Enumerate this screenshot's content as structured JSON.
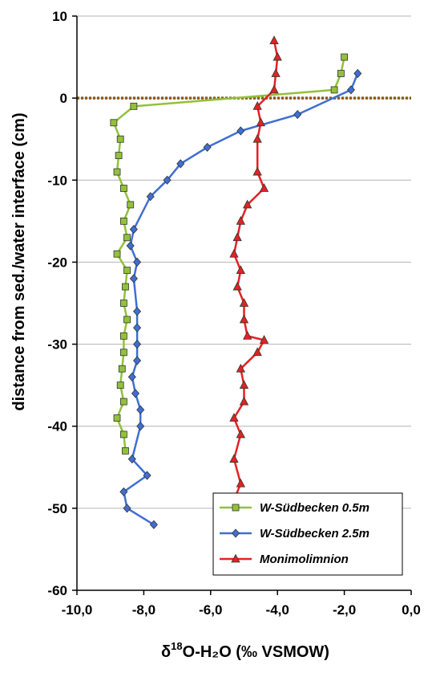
{
  "chart_data": {
    "type": "line",
    "xlabel_prefix": "δ",
    "xlabel_sup": "18",
    "xlabel_rest": "O-H₂O (‰ VSMOW)",
    "ylabel": "distance from sed./water interface (cm)",
    "xlim": [
      -10,
      0
    ],
    "ylim": [
      -60,
      10
    ],
    "x_ticks": [
      "-10,0",
      "-8,0",
      "-6,0",
      "-4,0",
      "-2,0",
      "0,0"
    ],
    "x_tick_values": [
      -10,
      -8,
      -6,
      -4,
      -2,
      0
    ],
    "y_ticks": [
      "10",
      "0",
      "-10",
      "-20",
      "-30",
      "-40",
      "-50",
      "-60"
    ],
    "y_tick_values": [
      10,
      0,
      -10,
      -20,
      -30,
      -40,
      -50,
      -60
    ],
    "grid": "horizontal",
    "legend_position": "bottom-right",
    "interface_line": {
      "y": 0,
      "color": "#8b5a1a"
    },
    "series": [
      {
        "name": "W-Südbecken 0.5m",
        "color": "#92c13b",
        "marker": "square",
        "points": [
          [
            -2.0,
            5
          ],
          [
            -2.1,
            3
          ],
          [
            -2.3,
            1
          ],
          [
            -8.3,
            -1
          ],
          [
            -8.9,
            -3
          ],
          [
            -8.7,
            -5
          ],
          [
            -8.75,
            -7
          ],
          [
            -8.8,
            -9
          ],
          [
            -8.6,
            -11
          ],
          [
            -8.4,
            -13
          ],
          [
            -8.6,
            -15
          ],
          [
            -8.5,
            -17
          ],
          [
            -8.8,
            -19
          ],
          [
            -8.5,
            -21
          ],
          [
            -8.55,
            -23
          ],
          [
            -8.6,
            -25
          ],
          [
            -8.5,
            -27
          ],
          [
            -8.6,
            -29
          ],
          [
            -8.6,
            -31
          ],
          [
            -8.65,
            -33
          ],
          [
            -8.7,
            -35
          ],
          [
            -8.6,
            -37
          ],
          [
            -8.8,
            -39
          ],
          [
            -8.6,
            -41
          ],
          [
            -8.55,
            -43
          ]
        ]
      },
      {
        "name": "W-Südbecken 2.5m",
        "color": "#3f6fd3",
        "marker": "diamond",
        "points": [
          [
            -1.6,
            3
          ],
          [
            -1.8,
            1
          ],
          [
            -3.4,
            -2
          ],
          [
            -5.1,
            -4
          ],
          [
            -6.1,
            -6
          ],
          [
            -6.9,
            -8
          ],
          [
            -7.3,
            -10
          ],
          [
            -7.8,
            -12
          ],
          [
            -8.3,
            -16
          ],
          [
            -8.4,
            -18
          ],
          [
            -8.2,
            -20
          ],
          [
            -8.3,
            -22
          ],
          [
            -8.2,
            -26
          ],
          [
            -8.2,
            -28
          ],
          [
            -8.2,
            -30
          ],
          [
            -8.2,
            -32
          ],
          [
            -8.35,
            -34
          ],
          [
            -8.25,
            -36
          ],
          [
            -8.1,
            -38
          ],
          [
            -8.1,
            -40
          ],
          [
            -8.35,
            -44
          ],
          [
            -7.9,
            -46
          ],
          [
            -8.6,
            -48
          ],
          [
            -8.5,
            -50
          ],
          [
            -7.7,
            -52
          ]
        ]
      },
      {
        "name": "Monimolimnion",
        "color": "#e02323",
        "marker": "triangle",
        "points": [
          [
            -4.1,
            7
          ],
          [
            -4.0,
            5
          ],
          [
            -4.05,
            3
          ],
          [
            -4.1,
            1
          ],
          [
            -4.6,
            -1
          ],
          [
            -4.5,
            -3
          ],
          [
            -4.6,
            -5
          ],
          [
            -4.6,
            -9
          ],
          [
            -4.4,
            -11
          ],
          [
            -4.9,
            -13
          ],
          [
            -5.1,
            -15
          ],
          [
            -5.2,
            -17
          ],
          [
            -5.3,
            -19
          ],
          [
            -5.1,
            -21
          ],
          [
            -5.2,
            -23
          ],
          [
            -5.0,
            -25
          ],
          [
            -5.0,
            -27
          ],
          [
            -4.9,
            -29
          ],
          [
            -4.4,
            -29.5
          ],
          [
            -4.6,
            -31
          ],
          [
            -5.1,
            -33
          ],
          [
            -5.0,
            -35
          ],
          [
            -5.0,
            -37
          ],
          [
            -5.3,
            -39
          ],
          [
            -5.1,
            -41
          ],
          [
            -5.3,
            -44
          ],
          [
            -5.1,
            -47
          ],
          [
            -5.3,
            -49
          ]
        ]
      }
    ]
  }
}
